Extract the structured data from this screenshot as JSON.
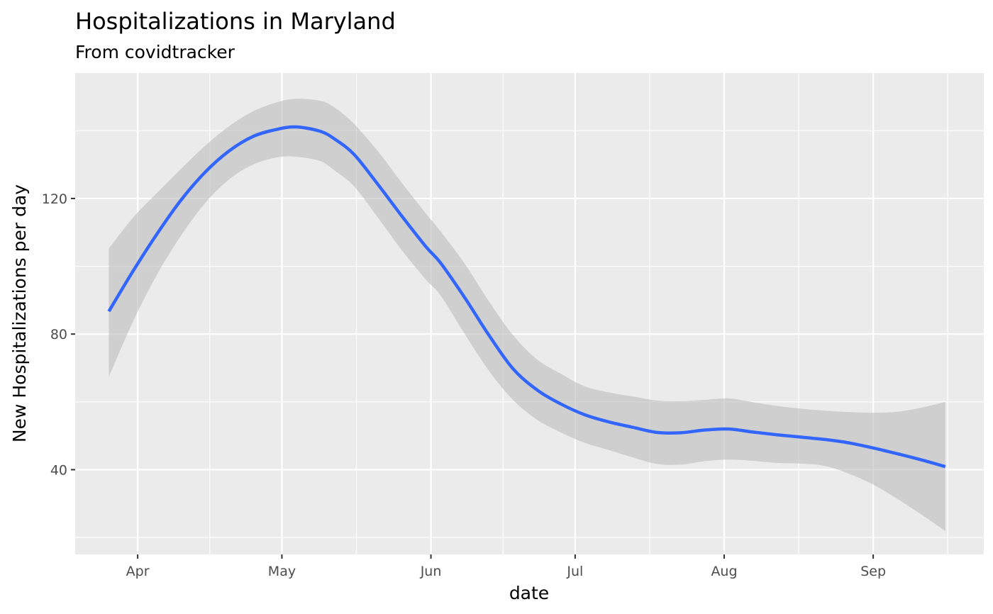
{
  "chart_data": {
    "type": "line",
    "title": "Hospitalizations in Maryland",
    "subtitle": "From covidtracker",
    "xlabel": "date",
    "ylabel": "New Hospitalizations per day",
    "x_ticks": [
      {
        "label": "Apr",
        "date": "2020-04-01"
      },
      {
        "label": "May",
        "date": "2020-05-01"
      },
      {
        "label": "Jun",
        "date": "2020-06-01"
      },
      {
        "label": "Jul",
        "date": "2020-07-01"
      },
      {
        "label": "Aug",
        "date": "2020-08-01"
      },
      {
        "label": "Sep",
        "date": "2020-09-01"
      }
    ],
    "y_ticks": [
      40,
      80,
      120
    ],
    "xlim": [
      "2020-03-19",
      "2020-09-24"
    ],
    "ylim": [
      15,
      157
    ],
    "grid": true,
    "colors": {
      "panel": "#ebebeb",
      "grid": "#ffffff",
      "line": "#3366ff",
      "ribbon": "#bdbdbd"
    },
    "series": [
      {
        "type": "smooth-with-ci",
        "points": [
          {
            "x": "2020-03-26",
            "y": 86.7,
            "ymin": 67.4,
            "ymax": 105.2
          },
          {
            "x": "2020-03-31",
            "y": 98.5,
            "ymin": 83.6,
            "ymax": 114.3
          },
          {
            "x": "2020-04-05",
            "y": 109.5,
            "ymin": 97.5,
            "ymax": 121.6
          },
          {
            "x": "2020-04-10",
            "y": 119.5,
            "ymin": 109.0,
            "ymax": 128.7
          },
          {
            "x": "2020-04-15",
            "y": 127.7,
            "ymin": 118.6,
            "ymax": 135.5
          },
          {
            "x": "2020-04-20",
            "y": 134.0,
            "ymin": 125.6,
            "ymax": 141.3
          },
          {
            "x": "2020-04-25",
            "y": 138.3,
            "ymin": 130.0,
            "ymax": 145.7
          },
          {
            "x": "2020-04-30",
            "y": 140.4,
            "ymin": 132.1,
            "ymax": 148.4
          },
          {
            "x": "2020-05-04",
            "y": 141.1,
            "ymin": 132.3,
            "ymax": 149.4
          },
          {
            "x": "2020-05-09",
            "y": 139.8,
            "ymin": 131.0,
            "ymax": 148.8
          },
          {
            "x": "2020-05-12",
            "y": 137.5,
            "ymin": 128.2,
            "ymax": 146.8
          },
          {
            "x": "2020-05-16",
            "y": 133.0,
            "ymin": 123.6,
            "ymax": 142.0
          },
          {
            "x": "2020-05-21",
            "y": 124.1,
            "ymin": 114.3,
            "ymax": 133.9
          },
          {
            "x": "2020-05-26",
            "y": 114.7,
            "ymin": 104.6,
            "ymax": 124.5
          },
          {
            "x": "2020-05-31",
            "y": 105.7,
            "ymin": 96.0,
            "ymax": 115.5
          },
          {
            "x": "2020-06-03",
            "y": 101.0,
            "ymin": 91.4,
            "ymax": 110.3
          },
          {
            "x": "2020-06-08",
            "y": 90.8,
            "ymin": 80.1,
            "ymax": 100.8
          },
          {
            "x": "2020-06-13",
            "y": 79.8,
            "ymin": 69.3,
            "ymax": 89.8
          },
          {
            "x": "2020-06-18",
            "y": 69.9,
            "ymin": 60.7,
            "ymax": 79.8
          },
          {
            "x": "2020-06-23",
            "y": 63.6,
            "ymin": 54.8,
            "ymax": 72.6
          },
          {
            "x": "2020-06-28",
            "y": 59.4,
            "ymin": 51.0,
            "ymax": 68.3
          },
          {
            "x": "2020-07-03",
            "y": 56.2,
            "ymin": 47.9,
            "ymax": 64.6
          },
          {
            "x": "2020-07-08",
            "y": 54.1,
            "ymin": 45.8,
            "ymax": 62.8
          },
          {
            "x": "2020-07-13",
            "y": 52.5,
            "ymin": 43.6,
            "ymax": 61.6
          },
          {
            "x": "2020-07-18",
            "y": 51.0,
            "ymin": 41.7,
            "ymax": 60.4
          },
          {
            "x": "2020-07-23",
            "y": 50.9,
            "ymin": 41.5,
            "ymax": 60.2
          },
          {
            "x": "2020-07-28",
            "y": 51.7,
            "ymin": 42.5,
            "ymax": 60.6
          },
          {
            "x": "2020-08-02",
            "y": 52.0,
            "ymin": 43.0,
            "ymax": 61.0
          },
          {
            "x": "2020-08-07",
            "y": 51.1,
            "ymin": 42.6,
            "ymax": 59.9
          },
          {
            "x": "2020-08-12",
            "y": 50.3,
            "ymin": 42.0,
            "ymax": 58.8
          },
          {
            "x": "2020-08-17",
            "y": 49.6,
            "ymin": 41.8,
            "ymax": 58.0
          },
          {
            "x": "2020-08-22",
            "y": 48.9,
            "ymin": 41.1,
            "ymax": 57.4
          },
          {
            "x": "2020-08-27",
            "y": 47.9,
            "ymin": 38.8,
            "ymax": 57.0
          },
          {
            "x": "2020-09-01",
            "y": 46.4,
            "ymin": 35.6,
            "ymax": 56.8
          },
          {
            "x": "2020-09-06",
            "y": 44.7,
            "ymin": 31.4,
            "ymax": 57.1
          },
          {
            "x": "2020-09-11",
            "y": 42.9,
            "ymin": 26.8,
            "ymax": 58.3
          },
          {
            "x": "2020-09-16",
            "y": 40.9,
            "ymin": 21.9,
            "ymax": 60.0
          }
        ]
      }
    ]
  }
}
